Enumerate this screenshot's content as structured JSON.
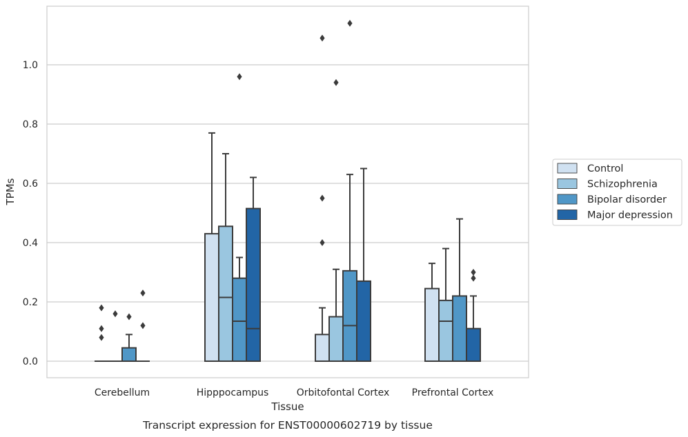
{
  "caption": "Transcript expression for ENST00000602719 by tissue",
  "chart_data": {
    "type": "box",
    "xlabel": "Tissue",
    "ylabel": "TPMs",
    "ylim": [
      -0.055,
      1.2
    ],
    "yticks": [
      0.0,
      0.2,
      0.4,
      0.6,
      0.8,
      1.0
    ],
    "ytick_labels": [
      "0.0",
      "0.2",
      "0.4",
      "0.6",
      "0.8",
      "1.0"
    ],
    "grid": "horizontal",
    "legend_position": "right",
    "categories": [
      "Cerebellum",
      "Hipppocampus",
      "Orbitofontal Cortex",
      "Prefrontal Cortex"
    ],
    "series": [
      {
        "name": "Control",
        "color": "#d0e1f1",
        "boxes": [
          {
            "q1": 0.0,
            "median": 0.0,
            "q3": 0.0,
            "whisker_low": 0.0,
            "whisker_high": 0.0,
            "outliers": [
              0.18,
              0.11,
              0.08
            ]
          },
          {
            "q1": 0.0,
            "median": 0.0,
            "q3": 0.43,
            "whisker_low": 0.0,
            "whisker_high": 0.77,
            "outliers": []
          },
          {
            "q1": 0.0,
            "median": 0.0,
            "q3": 0.09,
            "whisker_low": 0.0,
            "whisker_high": 0.18,
            "outliers": [
              1.09,
              0.55,
              0.4
            ]
          },
          {
            "q1": 0.0,
            "median": 0.0,
            "q3": 0.245,
            "whisker_low": 0.0,
            "whisker_high": 0.33,
            "outliers": []
          }
        ]
      },
      {
        "name": "Schizophrenia",
        "color": "#9ac6e0",
        "boxes": [
          {
            "q1": 0.0,
            "median": 0.0,
            "q3": 0.0,
            "whisker_low": 0.0,
            "whisker_high": 0.0,
            "outliers": [
              0.16
            ]
          },
          {
            "q1": 0.0,
            "median": 0.215,
            "q3": 0.455,
            "whisker_low": 0.0,
            "whisker_high": 0.7,
            "outliers": []
          },
          {
            "q1": 0.0,
            "median": 0.0,
            "q3": 0.15,
            "whisker_low": 0.0,
            "whisker_high": 0.31,
            "outliers": [
              0.94
            ]
          },
          {
            "q1": 0.0,
            "median": 0.135,
            "q3": 0.205,
            "whisker_low": 0.0,
            "whisker_high": 0.38,
            "outliers": []
          }
        ]
      },
      {
        "name": "Bipolar disorder",
        "color": "#5097c7",
        "boxes": [
          {
            "q1": 0.0,
            "median": 0.0,
            "q3": 0.045,
            "whisker_low": 0.0,
            "whisker_high": 0.09,
            "outliers": [
              0.15
            ]
          },
          {
            "q1": 0.0,
            "median": 0.135,
            "q3": 0.28,
            "whisker_low": 0.0,
            "whisker_high": 0.35,
            "outliers": [
              0.96
            ]
          },
          {
            "q1": 0.0,
            "median": 0.12,
            "q3": 0.305,
            "whisker_low": 0.0,
            "whisker_high": 0.63,
            "outliers": [
              1.14
            ]
          },
          {
            "q1": 0.0,
            "median": 0.0,
            "q3": 0.22,
            "whisker_low": 0.0,
            "whisker_high": 0.48,
            "outliers": []
          }
        ]
      },
      {
        "name": "Major depression",
        "color": "#2265a6",
        "boxes": [
          {
            "q1": 0.0,
            "median": 0.0,
            "q3": 0.0,
            "whisker_low": 0.0,
            "whisker_high": 0.0,
            "outliers": [
              0.23,
              0.12
            ]
          },
          {
            "q1": 0.0,
            "median": 0.11,
            "q3": 0.515,
            "whisker_low": 0.0,
            "whisker_high": 0.62,
            "outliers": []
          },
          {
            "q1": 0.0,
            "median": 0.0,
            "q3": 0.27,
            "whisker_low": 0.0,
            "whisker_high": 0.65,
            "outliers": []
          },
          {
            "q1": 0.0,
            "median": 0.0,
            "q3": 0.11,
            "whisker_low": 0.0,
            "whisker_high": 0.22,
            "outliers": [
              0.3,
              0.28
            ]
          }
        ]
      }
    ]
  }
}
